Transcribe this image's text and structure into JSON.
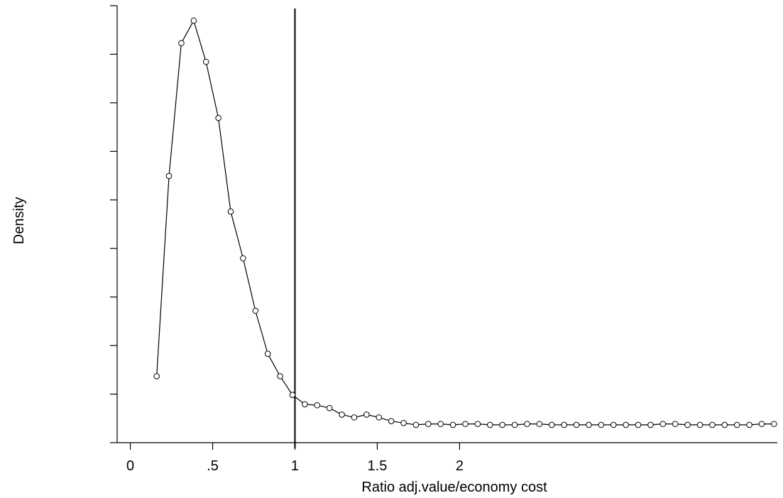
{
  "chart_data": {
    "type": "line",
    "xlabel": "Ratio adj.value/economy cost",
    "ylabel": "Density",
    "xlim": [
      -0.08,
      3.93
    ],
    "ylim": [
      -0.135,
      2.2
    ],
    "x_ticks": [
      0,
      0.5,
      1,
      1.5,
      2
    ],
    "x_tick_labels": [
      "0",
      ".5",
      "1",
      "1.5",
      "2"
    ],
    "y_tick_labels_shown": false,
    "y_tick_count": 10,
    "grid": false,
    "reference_line": {
      "axis": "x",
      "value": 1
    },
    "series": [
      {
        "markers": "hollow-circle",
        "x": [
          0.16,
          0.235,
          0.31,
          0.385,
          0.46,
          0.535,
          0.61,
          0.685,
          0.76,
          0.835,
          0.91,
          0.985,
          1.06,
          1.135,
          1.21,
          1.285,
          1.36,
          1.435,
          1.51,
          1.585,
          1.66,
          1.735,
          1.81,
          1.885,
          1.96,
          2.035,
          2.11,
          2.185,
          2.26,
          2.335,
          2.41,
          2.485,
          2.56,
          2.635,
          2.71,
          2.785,
          2.86,
          2.935,
          3.01,
          3.085,
          3.16,
          3.235,
          3.31,
          3.385,
          3.46,
          3.535,
          3.61,
          3.685,
          3.76,
          3.835,
          3.91
        ],
        "y": [
          0.22,
          1.29,
          2.0,
          2.12,
          1.9,
          1.6,
          1.1,
          0.85,
          0.57,
          0.34,
          0.22,
          0.12,
          0.07,
          0.065,
          0.05,
          0.015,
          0.0,
          0.015,
          0.0,
          -0.02,
          -0.03,
          -0.04,
          -0.035,
          -0.035,
          -0.04,
          -0.035,
          -0.035,
          -0.04,
          -0.04,
          -0.04,
          -0.035,
          -0.035,
          -0.04,
          -0.04,
          -0.04,
          -0.04,
          -0.04,
          -0.04,
          -0.04,
          -0.04,
          -0.04,
          -0.035,
          -0.035,
          -0.04,
          -0.04,
          -0.04,
          -0.04,
          -0.04,
          -0.04,
          -0.035,
          -0.035
        ]
      }
    ]
  }
}
